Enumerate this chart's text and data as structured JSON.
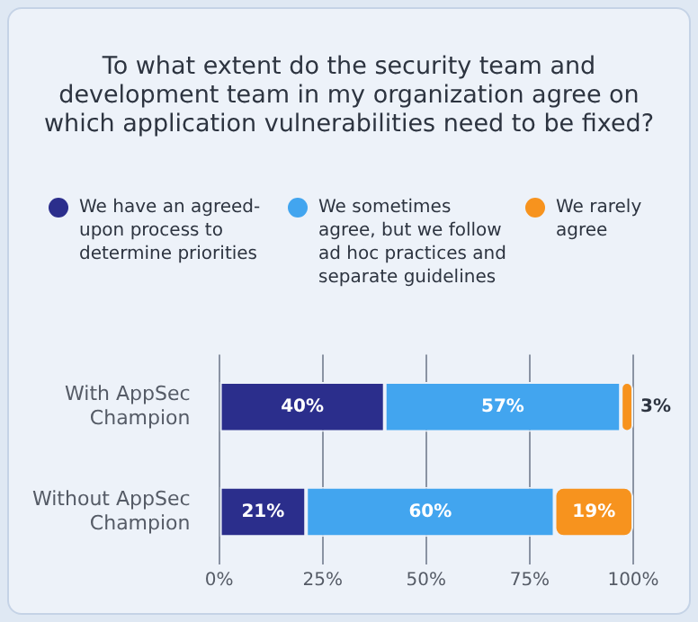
{
  "chart_data": {
    "type": "bar",
    "orientation": "horizontal",
    "stacked": true,
    "title": "To what extent do the security team and development team in my organization agree on which application vulnerabilities need to be fixed?",
    "categories": [
      "With AppSec Champion",
      "Without AppSec Champion"
    ],
    "series": [
      {
        "name": "We have an agreed-upon process to determine priorities",
        "color": "#2b2e8c",
        "values": [
          40,
          21
        ]
      },
      {
        "name": "We sometimes agree, but we follow ad hoc practices and separate guidelines",
        "color": "#42a5ef",
        "values": [
          57,
          60
        ]
      },
      {
        "name": "We rarely agree",
        "color": "#f7931e",
        "values": [
          3,
          19
        ]
      }
    ],
    "xlim": [
      0,
      100
    ],
    "xticks": [
      {
        "value": 0,
        "label": "0%"
      },
      {
        "value": 25,
        "label": "25%"
      },
      {
        "value": 50,
        "label": "50%"
      },
      {
        "value": 75,
        "label": "75%"
      },
      {
        "value": 100,
        "label": "100%"
      }
    ],
    "value_labels": [
      [
        "40%",
        "21%"
      ],
      [
        "57%",
        "60%"
      ],
      [
        "3%",
        "19%"
      ]
    ],
    "grid": "x",
    "legend": "top"
  }
}
